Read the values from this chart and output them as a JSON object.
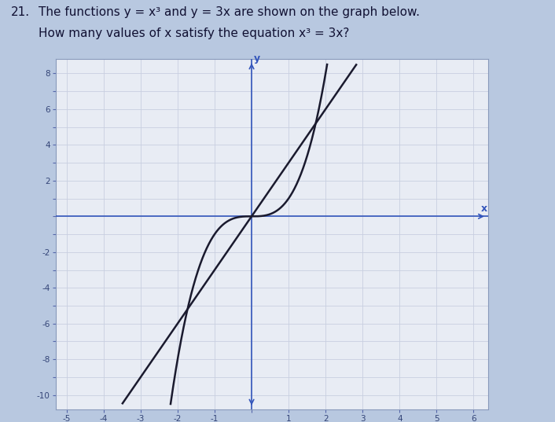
{
  "title_line1": "The functions y = x³ and y = 3x are shown on the graph below.",
  "title_line2": "How many values of x satisfy the equation x³ = 3x?",
  "question_number": "21.",
  "x_min": -5,
  "x_max": 6,
  "y_min": -10,
  "y_max": 8,
  "x_ticks": [
    -5,
    -4,
    -3,
    -2,
    -1,
    1,
    2,
    3,
    4,
    5,
    6
  ],
  "y_ticks": [
    -10,
    -8,
    -6,
    -4,
    -2,
    2,
    4,
    6,
    8
  ],
  "curve_color": "#1a1a2e",
  "line_color": "#1a1a2e",
  "grid_color": "#c8cfe0",
  "axis_color": "#3355bb",
  "background_color": "#b8c8e0",
  "plot_bg_color": "#e8ecf4",
  "label_x": "x",
  "label_y": "y",
  "font_size_title": 11,
  "font_size_tick": 7.5,
  "line_width": 1.8
}
